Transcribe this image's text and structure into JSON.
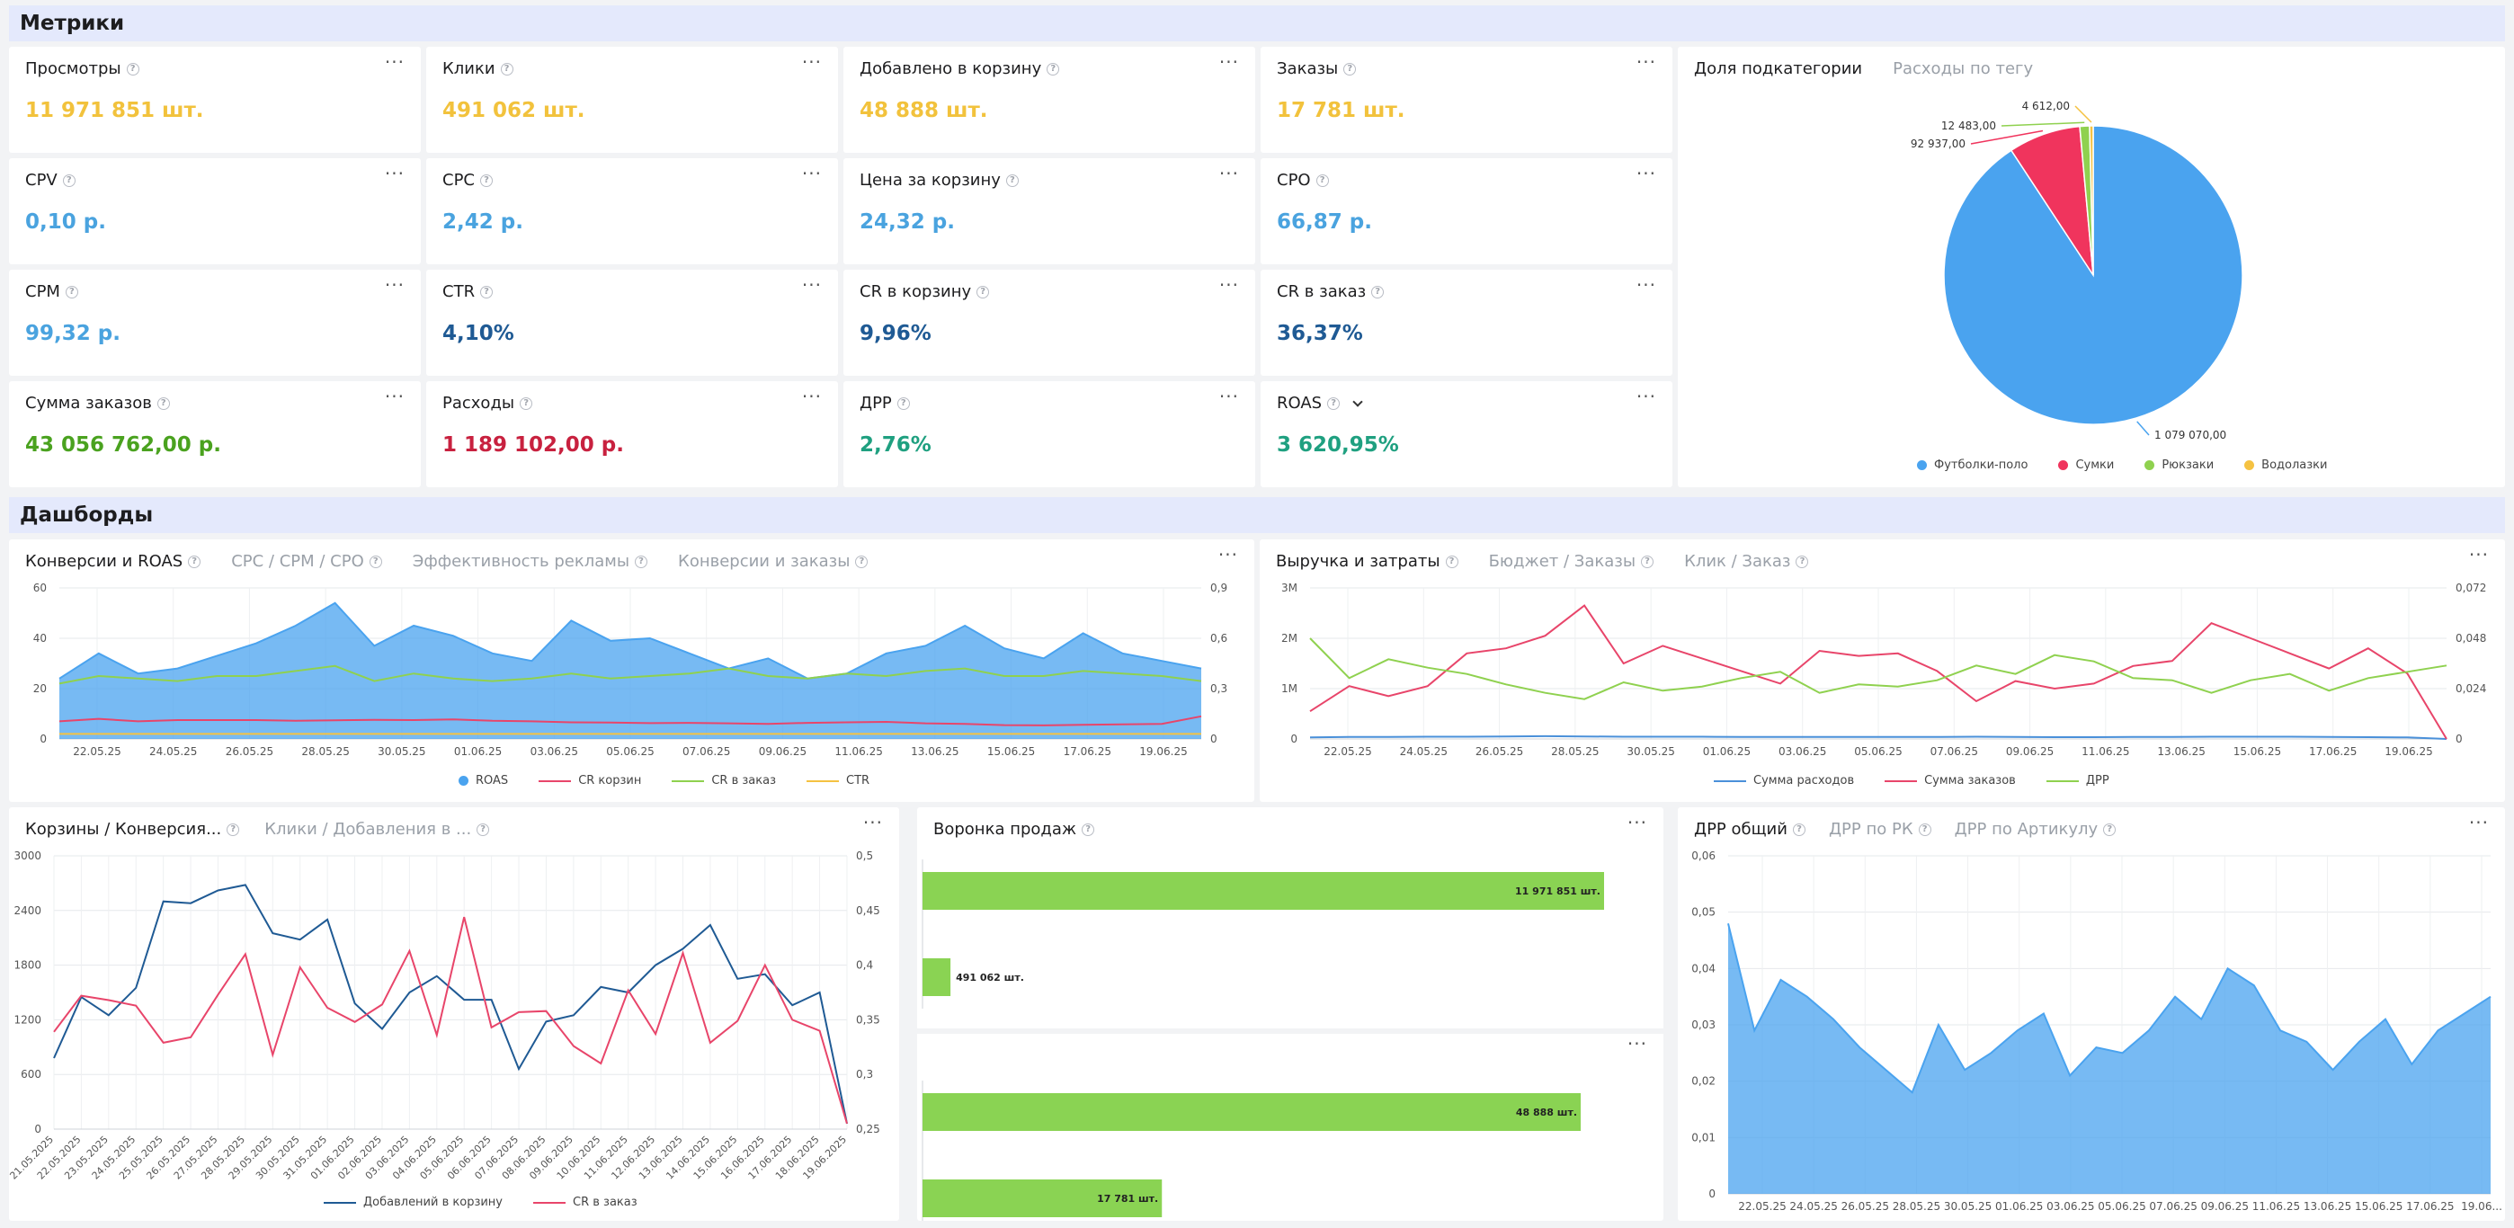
{
  "sections": {
    "metrics": "Метрики",
    "dashboards": "Дашборды"
  },
  "metrics": [
    {
      "title": "Просмотры",
      "value": "11 971 851 шт.",
      "color": "#f2c23c"
    },
    {
      "title": "Клики",
      "value": "491 062 шт.",
      "color": "#f2c23c"
    },
    {
      "title": "Добавлено в корзину",
      "value": "48 888 шт.",
      "color": "#f2c23c"
    },
    {
      "title": "Заказы",
      "value": "17 781 шт.",
      "color": "#f2c23c"
    },
    {
      "title": "CPV",
      "value": "0,10 р.",
      "color": "#4aa3df"
    },
    {
      "title": "CPC",
      "value": "2,42 р.",
      "color": "#4aa3df"
    },
    {
      "title": "Цена за корзину",
      "value": "24,32 р.",
      "color": "#4aa3df"
    },
    {
      "title": "CPO",
      "value": "66,87 р.",
      "color": "#4aa3df"
    },
    {
      "title": "CPM",
      "value": "99,32 р.",
      "color": "#4aa3df"
    },
    {
      "title": "CTR",
      "value": "4,10%",
      "color": "#1f5a94"
    },
    {
      "title": "CR в корзину",
      "value": "9,96%",
      "color": "#1f5a94"
    },
    {
      "title": "CR в заказ",
      "value": "36,37%",
      "color": "#1f5a94"
    },
    {
      "title": "Сумма заказов",
      "value": "43 056 762,00 р.",
      "color": "#4aa21f"
    },
    {
      "title": "Расходы",
      "value": "1 189 102,00 р.",
      "color": "#c8213f"
    },
    {
      "title": "ДРР",
      "value": "2,76%",
      "color": "#1fa080"
    },
    {
      "title": "ROAS",
      "value": "3 620,95%",
      "color": "#1fa080"
    }
  ],
  "pie_panel": {
    "tabs": [
      "Доля подкатегории",
      "Расходы по тегу"
    ],
    "chart_data": {
      "type": "pie",
      "slices": [
        {
          "name": "Футболки-поло",
          "value": 1079070,
          "label": "1 079 070,00",
          "color": "#4aa3ef"
        },
        {
          "name": "Сумки",
          "value": 92937,
          "label": "92 937,00",
          "color": "#f0345d"
        },
        {
          "name": "Рюкзаки",
          "value": 12483,
          "label": "12 483,00",
          "color": "#8fd14f"
        },
        {
          "name": "Водолазки",
          "value": 4612,
          "label": "4 612,00",
          "color": "#f5c242"
        }
      ],
      "legend_position": "bottom"
    }
  },
  "conv_panel": {
    "tabs": [
      "Конверсии и ROAS",
      "CPC / CPM / CPO",
      "Эффективность рекламы",
      "Конверсии и заказы"
    ],
    "chart_data": {
      "type": "area",
      "x_labels": [
        "22.05.25",
        "24.05.25",
        "26.05.25",
        "28.05.25",
        "30.05.25",
        "01.06.25",
        "03.06.25",
        "05.06.25",
        "07.06.25",
        "09.06.25",
        "11.06.25",
        "13.06.25",
        "15.06.25",
        "17.06.25",
        "19.06.25"
      ],
      "y_ticks": [
        "0",
        "20",
        "40",
        "60"
      ],
      "y2_ticks": [
        "0",
        "0,3",
        "0,6",
        "0,9"
      ],
      "ylim": [
        0,
        60
      ],
      "y2lim": [
        0,
        0.9
      ],
      "series": [
        {
          "name": "ROAS",
          "color": "#4aa3ef",
          "axis": "left",
          "kind": "area",
          "values": [
            24,
            34,
            26,
            28,
            33,
            38,
            45,
            54,
            37,
            45,
            41,
            34,
            31,
            47,
            39,
            40,
            34,
            28,
            32,
            24,
            26,
            34,
            37,
            45,
            36,
            32,
            42,
            34,
            31,
            28
          ]
        },
        {
          "name": "CR корзин",
          "color": "#e8456a",
          "axis": "left",
          "kind": "line",
          "values": [
            7,
            8,
            7,
            7.5,
            7.5,
            7.5,
            7.2,
            7.4,
            7.6,
            7.5,
            7.8,
            7.2,
            7,
            6.6,
            6.5,
            6.3,
            6.4,
            6.2,
            6,
            6.4,
            6.6,
            6.8,
            6.2,
            6,
            5.5,
            5.4,
            5.6,
            5.8,
            6,
            9
          ]
        },
        {
          "name": "CR в заказ",
          "color": "#8fd14f",
          "axis": "left",
          "kind": "line",
          "values": [
            22,
            25,
            24,
            23,
            25,
            25,
            27,
            29,
            23,
            26,
            24,
            23,
            24,
            26,
            24,
            25,
            26,
            28,
            25,
            24,
            26,
            25,
            27,
            28,
            25,
            25,
            27,
            26,
            25,
            23
          ]
        },
        {
          "name": "CTR",
          "color": "#f5c242",
          "axis": "left",
          "kind": "line",
          "values": [
            2,
            2,
            2,
            2,
            2,
            2,
            2,
            2,
            2,
            2,
            2,
            2,
            2,
            2,
            2,
            2,
            2,
            2,
            2,
            2,
            2,
            2,
            2,
            2,
            2,
            2,
            2,
            2,
            2,
            2
          ]
        }
      ]
    }
  },
  "rev_panel": {
    "tabs": [
      "Выручка и затраты",
      "Бюджет / Заказы",
      "Клик / Заказ"
    ],
    "chart_data": {
      "type": "line",
      "x_labels": [
        "22.05.25",
        "24.05.25",
        "26.05.25",
        "28.05.25",
        "30.05.25",
        "01.06.25",
        "03.06.25",
        "05.06.25",
        "07.06.25",
        "09.06.25",
        "11.06.25",
        "13.06.25",
        "15.06.25",
        "17.06.25",
        "19.06.25"
      ],
      "y_ticks": [
        "0",
        "1M",
        "2M",
        "3M"
      ],
      "y2_ticks": [
        "0",
        "0,024",
        "0,048",
        "0,072"
      ],
      "ylim": [
        0,
        3000000
      ],
      "y2lim": [
        0,
        0.072
      ],
      "series": [
        {
          "name": "Сумма расходов",
          "color": "#4a90d9",
          "axis": "left",
          "values": [
            30000,
            40000,
            40000,
            45000,
            45000,
            50000,
            55000,
            50000,
            45000,
            45000,
            45000,
            40000,
            40000,
            40000,
            40000,
            40000,
            40000,
            45000,
            40000,
            35000,
            35000,
            40000,
            40000,
            45000,
            45000,
            45000,
            40000,
            35000,
            30000,
            0
          ]
        },
        {
          "name": "Сумма заказов",
          "color": "#e8456a",
          "axis": "left",
          "values": [
            550000,
            1050000,
            850000,
            1050000,
            1700000,
            1800000,
            2050000,
            2650000,
            1500000,
            1850000,
            1600000,
            1350000,
            1100000,
            1750000,
            1650000,
            1700000,
            1350000,
            750000,
            1150000,
            1000000,
            1100000,
            1450000,
            1550000,
            2300000,
            2000000,
            1700000,
            1400000,
            1800000,
            1300000,
            0
          ]
        },
        {
          "name": "ДРР",
          "color": "#8fd14f",
          "axis": "right",
          "values": [
            0.048,
            0.029,
            0.038,
            0.034,
            0.031,
            0.026,
            0.022,
            0.019,
            0.027,
            0.023,
            0.025,
            0.029,
            0.032,
            0.022,
            0.026,
            0.025,
            0.028,
            0.035,
            0.031,
            0.04,
            0.037,
            0.029,
            0.028,
            0.022,
            0.028,
            0.031,
            0.023,
            0.029,
            0.032,
            0.035
          ]
        }
      ]
    }
  },
  "carts_panel": {
    "tabs": [
      "Корзины / Конверсия...",
      "Клики / Добавления в ..."
    ],
    "chart_data": {
      "type": "line",
      "x_labels": [
        "21.05.2025",
        "22.05.2025",
        "23.05.2025",
        "24.05.2025",
        "25.05.2025",
        "26.05.2025",
        "27.05.2025",
        "28.05.2025",
        "29.05.2025",
        "30.05.2025",
        "31.05.2025",
        "01.06.2025",
        "02.06.2025",
        "03.06.2025",
        "04.06.2025",
        "05.06.2025",
        "06.06.2025",
        "07.06.2025",
        "08.06.2025",
        "09.06.2025",
        "10.06.2025",
        "11.06.2025",
        "12.06.2025",
        "13.06.2025",
        "14.06.2025",
        "15.06.2025",
        "16.06.2025",
        "17.06.2025",
        "18.06.2025",
        "19.06.2025"
      ],
      "y_ticks": [
        "0",
        "600",
        "1200",
        "1800",
        "2400",
        "3000"
      ],
      "y2_ticks": [
        "0,25",
        "0,3",
        "0,35",
        "0,4",
        "0,45",
        "0,5"
      ],
      "ylim": [
        0,
        3000
      ],
      "y2lim": [
        0.25,
        0.5
      ],
      "series": [
        {
          "name": "Добавлений в корзину",
          "color": "#1f5a94",
          "axis": "left",
          "values": [
            780,
            1450,
            1250,
            1550,
            2500,
            2480,
            2620,
            2680,
            2150,
            2080,
            2300,
            1380,
            1100,
            1500,
            1680,
            1420,
            1420,
            660,
            1180,
            1250,
            1560,
            1500,
            1800,
            1980,
            2240,
            1650,
            1700,
            1360,
            1500,
            60
          ]
        },
        {
          "name": "CR в заказ",
          "color": "#e8456a",
          "axis": "right",
          "values": [
            0.339,
            0.372,
            0.368,
            0.363,
            0.329,
            0.334,
            0.373,
            0.41,
            0.318,
            0.398,
            0.361,
            0.348,
            0.364,
            0.413,
            0.336,
            0.444,
            0.343,
            0.357,
            0.358,
            0.326,
            0.31,
            0.377,
            0.337,
            0.411,
            0.329,
            0.349,
            0.4,
            0.35,
            0.34,
            0.255
          ]
        }
      ]
    }
  },
  "funnel_panel": {
    "title": "Воронка продаж",
    "chart_data": {
      "type": "bar",
      "orientation": "horizontal",
      "bars": [
        {
          "value": 11971851,
          "label": "11 971 851 шт."
        },
        {
          "value": 491062,
          "label": "491 062 шт."
        },
        {
          "value": 48888,
          "label": "48 888 шт."
        },
        {
          "value": 17781,
          "label": "17 781 шт."
        }
      ],
      "color": "#8ad353"
    }
  },
  "drr_panel": {
    "tabs": [
      "ДРР общий",
      "ДРР по РК",
      "ДРР по Артикулу"
    ],
    "chart_data": {
      "type": "area",
      "x_labels": [
        "22.05.25",
        "24.05.25",
        "26.05.25",
        "28.05.25",
        "30.05.25",
        "01.06.25",
        "03.06.25",
        "05.06.25",
        "07.06.25",
        "09.06.25",
        "11.06.25",
        "13.06.25",
        "15.06.25",
        "17.06.25",
        "19.06..."
      ],
      "y_ticks": [
        "0",
        "0,01",
        "0,02",
        "0,03",
        "0,04",
        "0,05",
        "0,06"
      ],
      "ylim": [
        0,
        0.06
      ],
      "series": [
        {
          "name": "ДРР общий",
          "color": "#4aa3ef",
          "values": [
            0.048,
            0.029,
            0.038,
            0.035,
            0.031,
            0.026,
            0.022,
            0.018,
            0.03,
            0.022,
            0.025,
            0.029,
            0.032,
            0.021,
            0.026,
            0.025,
            0.029,
            0.035,
            0.031,
            0.04,
            0.037,
            0.029,
            0.027,
            0.022,
            0.027,
            0.031,
            0.023,
            0.029,
            0.032,
            0.035
          ]
        }
      ]
    }
  }
}
